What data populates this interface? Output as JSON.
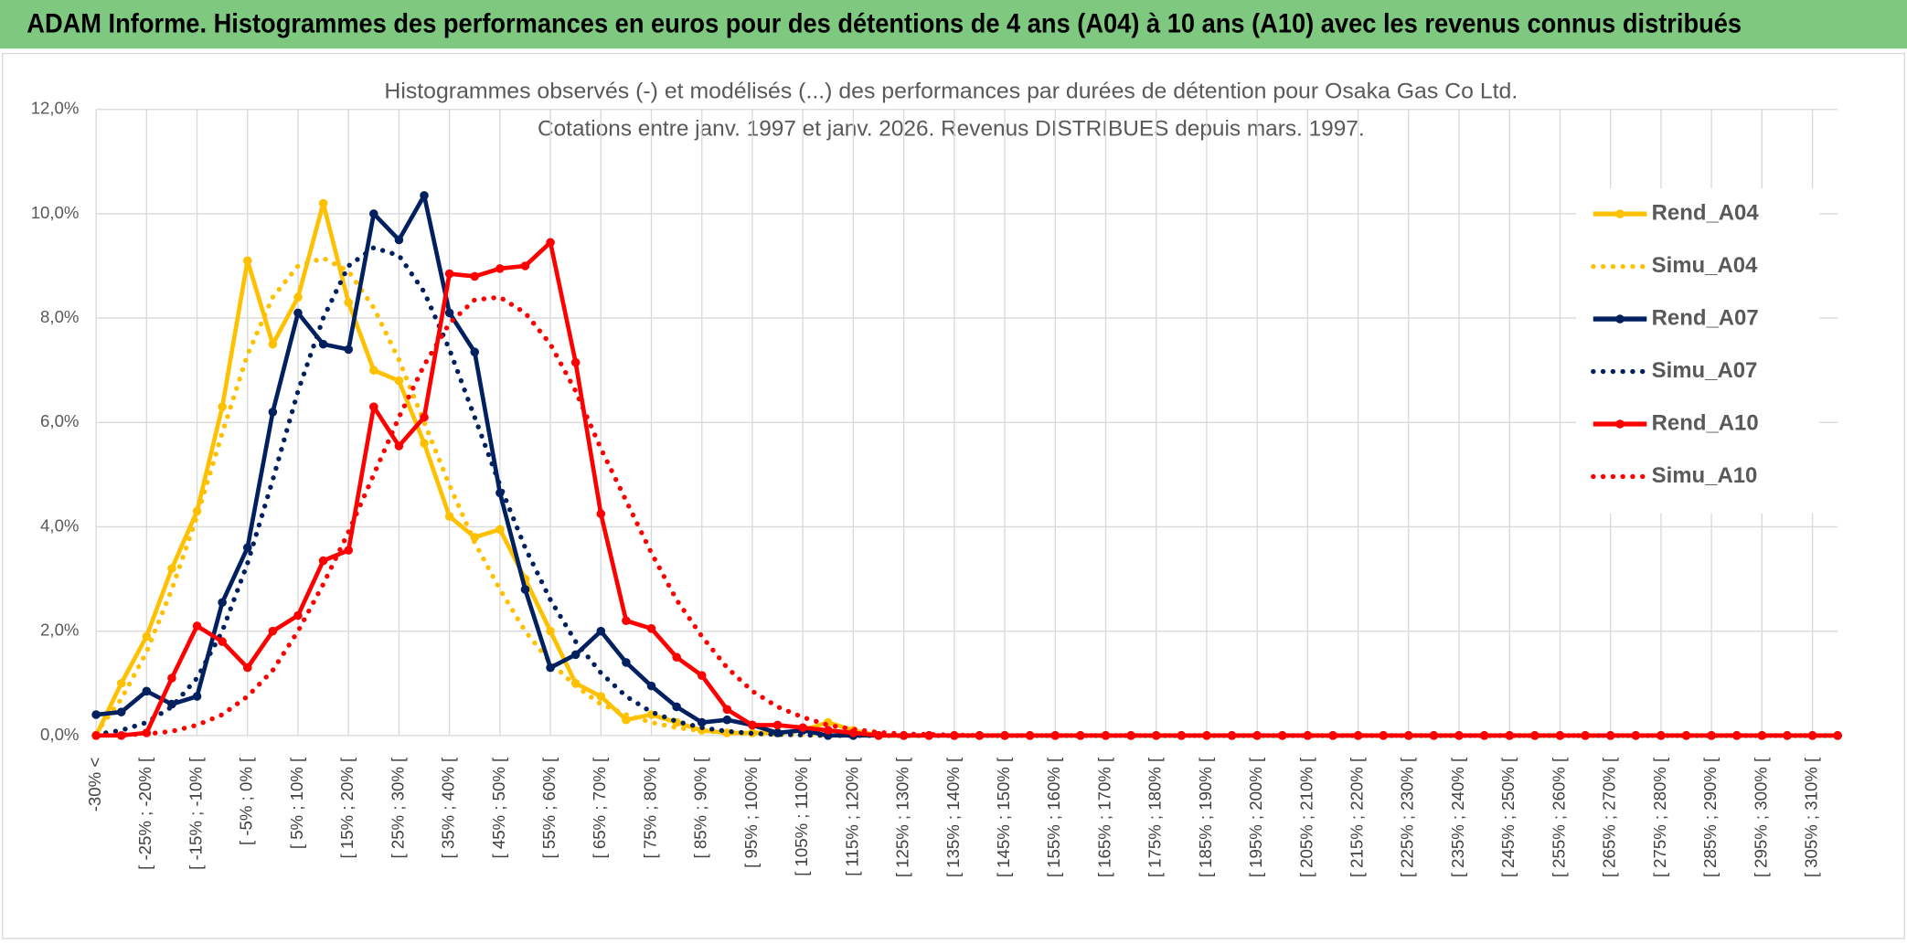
{
  "header": "ADAM Informe. Histogrammes des performances en euros pour des détentions de 4 ans (A04) à 10 ans (A10) avec les revenus connus distribués",
  "chart_data": {
    "type": "line",
    "title": "Histogrammes observés (-) et modélisés (...) des performances par durées de détention pour Osaka Gas Co Ltd.",
    "subtitle": "Cotations entre janv. 1997 et janv. 2026.  Revenus DISTRIBUES depuis mars. 1997.",
    "categories": [
      "-30% <",
      null,
      "[ -25% ; -20% [",
      null,
      "[ -15% ; -10% [",
      null,
      "[ -5% ; 0% [",
      null,
      "[ 5% ; 10% [",
      null,
      "[ 15% ; 20% [",
      null,
      "[ 25% ; 30% [",
      null,
      "[ 35% ; 40% [",
      null,
      "[ 45% ; 50% [",
      null,
      "[ 55% ; 60% [",
      null,
      "[ 65% ; 70% [",
      null,
      "[ 75% ; 80% [",
      null,
      "[ 85% ; 90% [",
      null,
      "[ 95% ; 100% [",
      null,
      "[ 105% ; 110% [",
      null,
      "[ 115% ; 120% [",
      null,
      "[ 125% ; 130% [",
      null,
      "[ 135% ; 140% [",
      null,
      "[ 145% ; 150% [",
      null,
      "[ 155% ; 160% [",
      null,
      "[ 165% ; 170% [",
      null,
      "[ 175% ; 180% [",
      null,
      "[ 185% ; 190% [",
      null,
      "[ 195% ; 200% [",
      null,
      "[ 205% ; 210% [",
      null,
      "[ 215% ; 220% [",
      null,
      "[ 225% ; 230% [",
      null,
      "[ 235% ; 240% [",
      null,
      "[ 245% ; 250% [",
      null,
      "[ 255% ; 260% [",
      null,
      "[ 265% ; 270% [",
      null,
      "[ 275% ; 280% [",
      null,
      "[ 285% ; 290% [",
      null,
      "[ 295% ; 300% [",
      null,
      "[ 305% ; 310% [",
      null
    ],
    "series": [
      {
        "name": "Rend_A04",
        "color": "#ffc000",
        "style": "solid",
        "markers": true,
        "values": [
          0,
          1.0,
          1.9,
          3.2,
          4.3,
          6.3,
          9.1,
          7.5,
          8.4,
          10.2,
          8.3,
          7.0,
          6.8,
          5.6,
          4.2,
          3.8,
          3.95,
          3.0,
          2.0,
          1.0,
          0.75,
          0.3,
          0.4,
          0.25,
          0.1,
          0.05,
          0.05,
          0.05,
          0.1,
          0.25,
          0.1,
          0,
          0,
          0,
          0,
          0,
          0,
          0,
          0,
          0,
          0,
          0,
          0,
          0,
          0,
          0,
          0,
          0,
          0,
          0,
          0,
          0,
          0,
          0,
          0,
          0,
          0,
          0,
          0,
          0,
          0,
          0,
          0,
          0,
          0,
          0,
          0,
          0,
          0,
          0
        ]
      },
      {
        "name": "Simu_A04",
        "color": "#ffc000",
        "style": "dotted",
        "markers": false,
        "values": [
          0.05,
          0.7,
          1.6,
          2.8,
          4.2,
          5.8,
          7.3,
          8.4,
          9.0,
          9.15,
          8.9,
          8.2,
          7.2,
          6.0,
          4.8,
          3.7,
          2.8,
          2.0,
          1.4,
          0.95,
          0.6,
          0.4,
          0.25,
          0.15,
          0.09,
          0.05,
          0.03,
          0.02,
          0.01,
          0,
          0,
          0,
          0,
          0,
          0,
          0,
          0,
          0,
          0,
          0,
          0,
          0,
          0,
          0,
          0,
          0,
          0,
          0,
          0,
          0,
          0,
          0,
          0,
          0,
          0,
          0,
          0,
          0,
          0,
          0,
          0,
          0,
          0,
          0,
          0,
          0,
          0,
          0,
          0,
          0
        ]
      },
      {
        "name": "Rend_A07",
        "color": "#002060",
        "style": "solid",
        "markers": true,
        "values": [
          0.4,
          0.45,
          0.85,
          0.6,
          0.75,
          2.55,
          3.6,
          6.2,
          8.1,
          7.5,
          7.4,
          10.0,
          9.5,
          10.35,
          8.1,
          7.35,
          4.65,
          2.8,
          1.3,
          1.55,
          2.0,
          1.4,
          0.95,
          0.55,
          0.25,
          0.3,
          0.2,
          0.05,
          0.1,
          0,
          0,
          0,
          0,
          0,
          0,
          0,
          0,
          0,
          0,
          0,
          0,
          0,
          0,
          0,
          0,
          0,
          0,
          0,
          0,
          0,
          0,
          0,
          0,
          0,
          0,
          0,
          0,
          0,
          0,
          0,
          0,
          0,
          0,
          0,
          0,
          0,
          0,
          0,
          0,
          0
        ]
      },
      {
        "name": "Simu_A07",
        "color": "#002060",
        "style": "dotted",
        "markers": false,
        "values": [
          0.02,
          0.1,
          0.25,
          0.55,
          1.1,
          2.0,
          3.3,
          4.9,
          6.6,
          8.0,
          9.0,
          9.35,
          9.2,
          8.5,
          7.4,
          6.1,
          4.8,
          3.6,
          2.6,
          1.8,
          1.2,
          0.75,
          0.45,
          0.27,
          0.15,
          0.08,
          0.04,
          0.02,
          0.01,
          0,
          0,
          0,
          0,
          0,
          0,
          0,
          0,
          0,
          0,
          0,
          0,
          0,
          0,
          0,
          0,
          0,
          0,
          0,
          0,
          0,
          0,
          0,
          0,
          0,
          0,
          0,
          0,
          0,
          0,
          0,
          0,
          0,
          0,
          0,
          0,
          0,
          0,
          0,
          0,
          0
        ]
      },
      {
        "name": "Rend_A10",
        "color": "#ff0000",
        "style": "solid",
        "markers": true,
        "values": [
          0,
          0,
          0.05,
          1.1,
          2.1,
          1.8,
          1.3,
          2.0,
          2.3,
          3.35,
          3.55,
          6.3,
          5.55,
          6.1,
          8.85,
          8.8,
          8.95,
          9.0,
          9.45,
          7.15,
          4.25,
          2.2,
          2.05,
          1.5,
          1.15,
          0.5,
          0.2,
          0.2,
          0.15,
          0.1,
          0.05,
          0,
          0,
          0,
          0,
          0,
          0,
          0,
          0,
          0,
          0,
          0,
          0,
          0,
          0,
          0,
          0,
          0,
          0,
          0,
          0,
          0,
          0,
          0,
          0,
          0,
          0,
          0,
          0,
          0,
          0,
          0,
          0,
          0,
          0,
          0,
          0,
          0,
          0,
          0
        ]
      },
      {
        "name": "Simu_A10",
        "color": "#ff0000",
        "style": "dotted",
        "markers": false,
        "values": [
          0,
          0.01,
          0.03,
          0.08,
          0.2,
          0.4,
          0.75,
          1.25,
          2.0,
          2.9,
          3.9,
          5.0,
          6.1,
          7.1,
          7.9,
          8.35,
          8.4,
          8.1,
          7.5,
          6.6,
          5.5,
          4.5,
          3.5,
          2.6,
          1.9,
          1.3,
          0.85,
          0.55,
          0.35,
          0.2,
          0.12,
          0.06,
          0.03,
          0.02,
          0.01,
          0,
          0,
          0,
          0,
          0,
          0,
          0,
          0,
          0,
          0,
          0,
          0,
          0,
          0,
          0,
          0,
          0,
          0,
          0,
          0,
          0,
          0,
          0,
          0,
          0,
          0,
          0,
          0,
          0,
          0,
          0,
          0,
          0,
          0,
          0
        ]
      }
    ],
    "ylim": [
      0,
      12
    ],
    "yticks": [
      {
        "value": 0,
        "label": "0,0%"
      },
      {
        "value": 2,
        "label": "2,0%"
      },
      {
        "value": 4,
        "label": "4,0%"
      },
      {
        "value": 6,
        "label": "6,0%"
      },
      {
        "value": 8,
        "label": "8,0%"
      },
      {
        "value": 10,
        "label": "10,0%"
      },
      {
        "value": 12,
        "label": "12,0%"
      }
    ],
    "grid": true,
    "legend": "right"
  }
}
